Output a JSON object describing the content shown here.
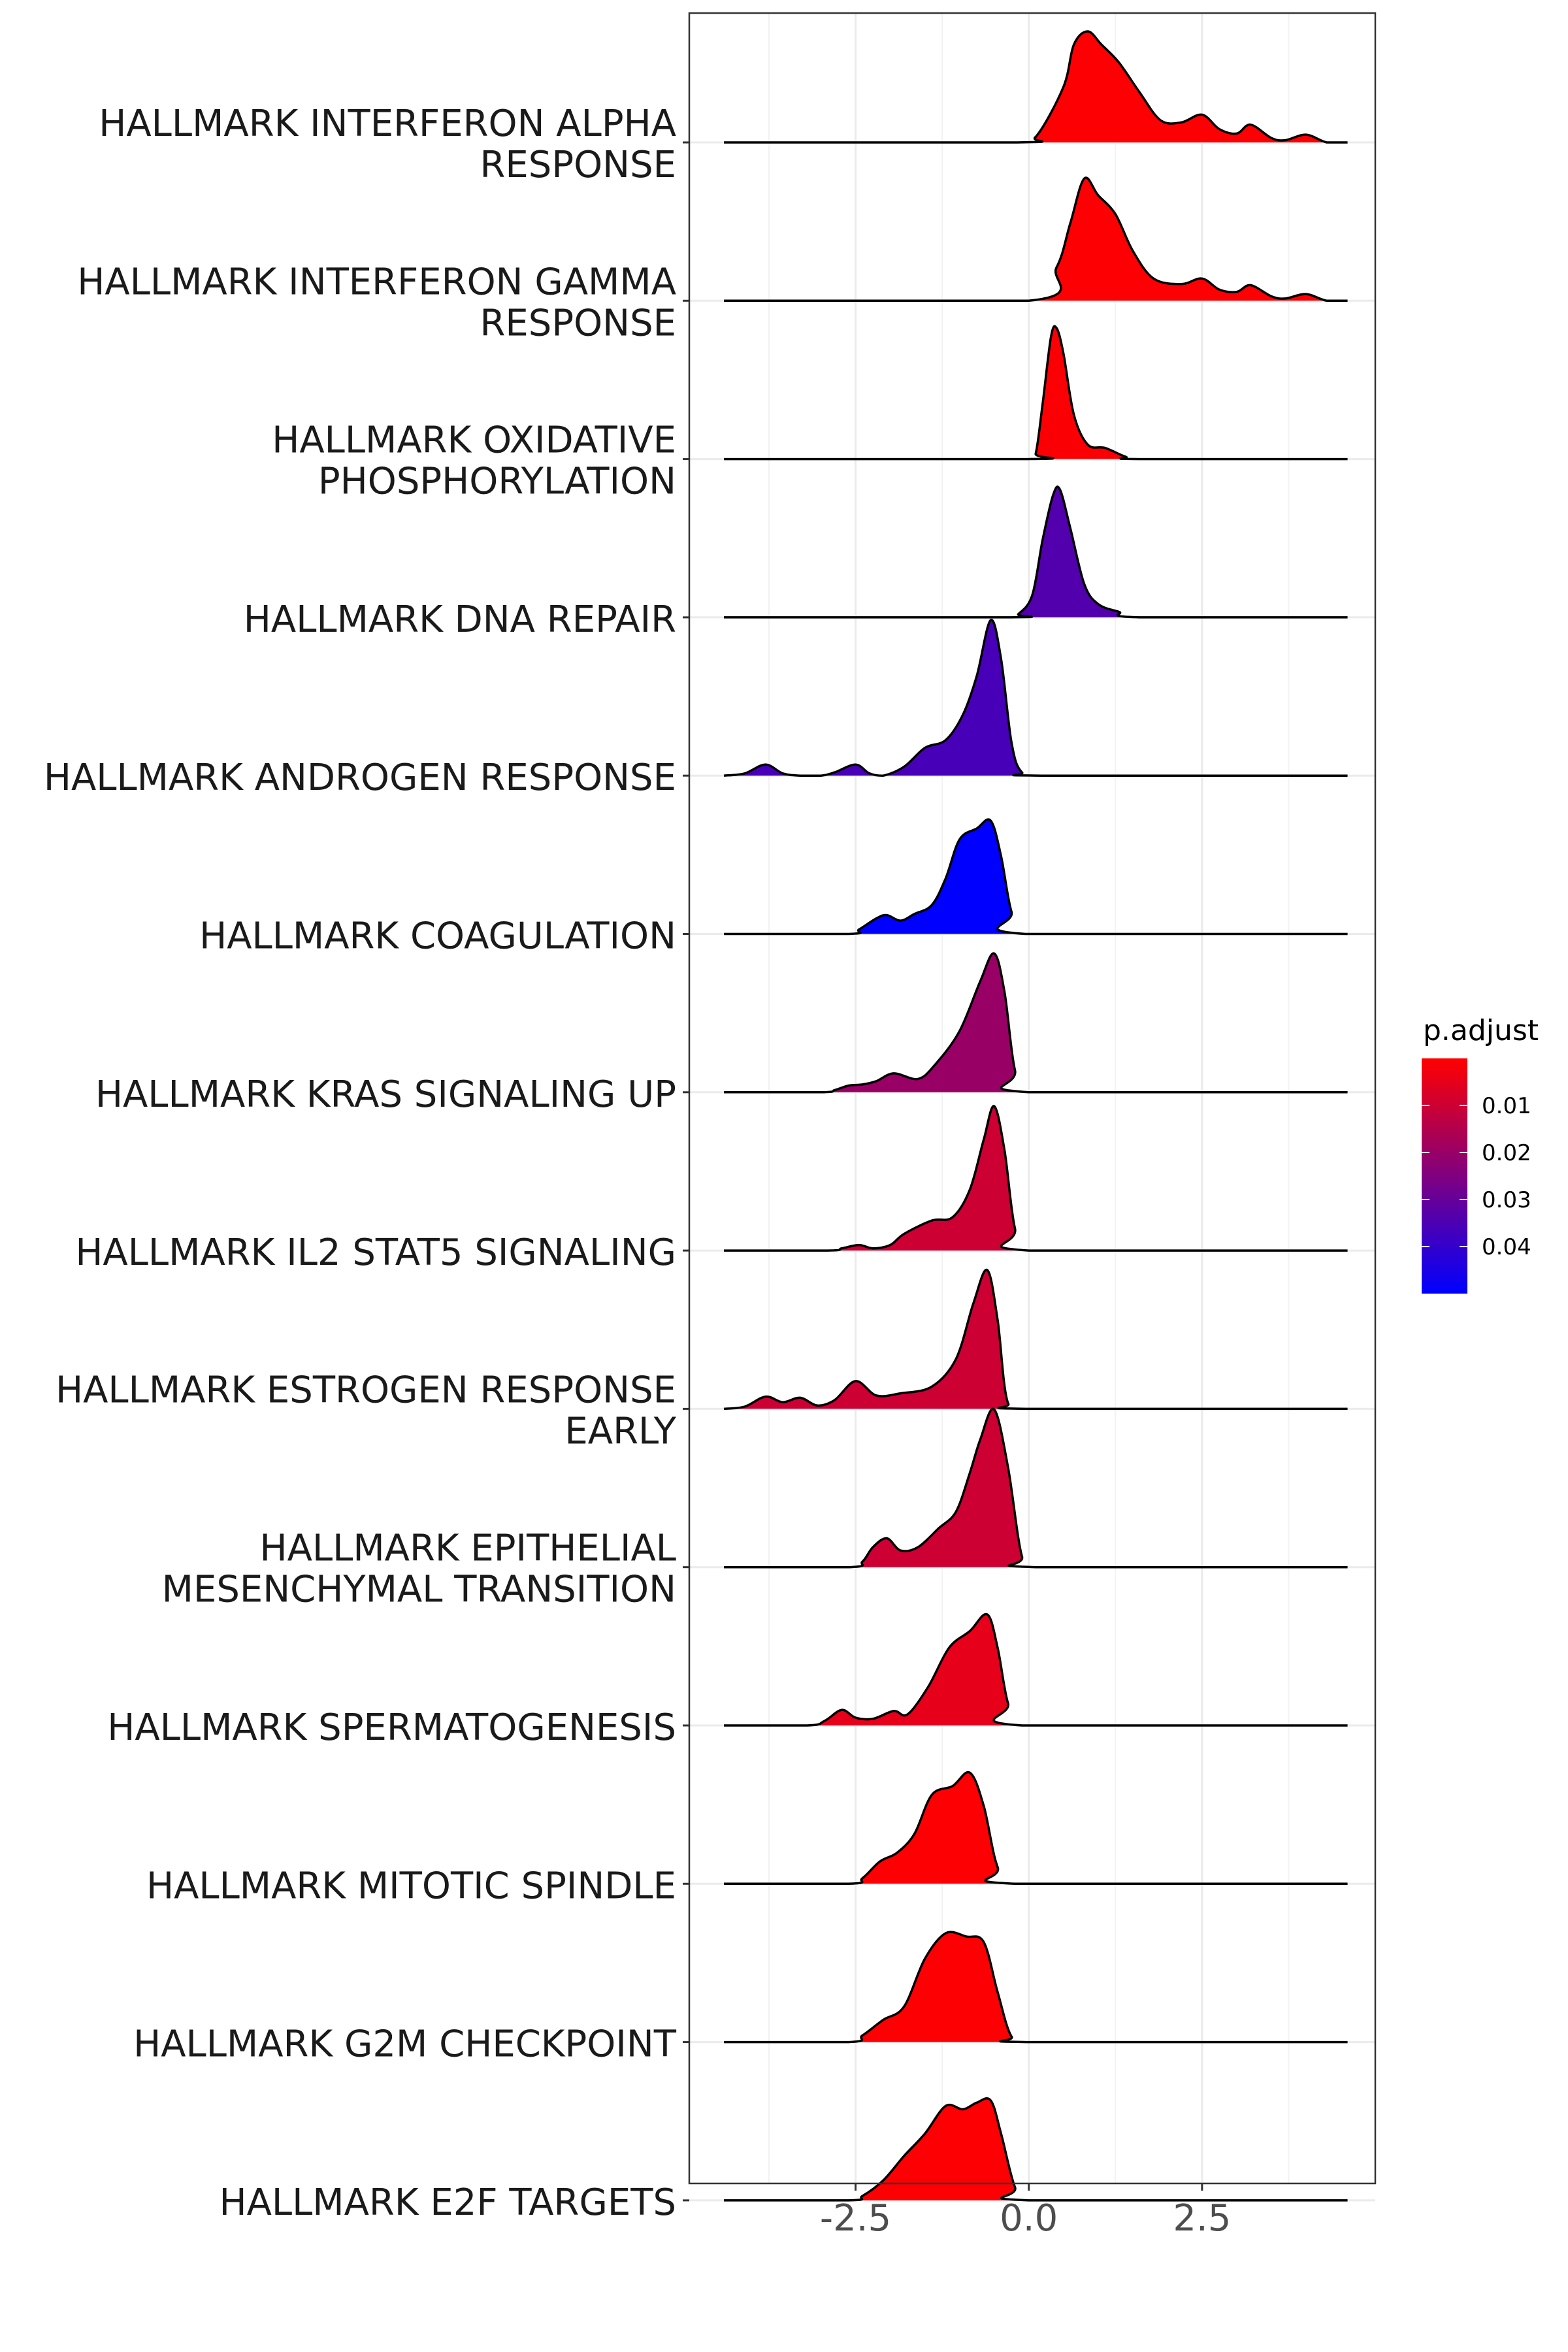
{
  "chart_data": {
    "type": "ridgeline",
    "xlim": [
      -4.9,
      5.0
    ],
    "x_ticks": [
      {
        "value": -2.5,
        "label": "-2.5"
      },
      {
        "value": 0.0,
        "label": "0.0"
      },
      {
        "value": 2.5,
        "label": "2.5"
      }
    ],
    "grid": true,
    "legend": {
      "title": "p.adjust",
      "placement": "right",
      "range": [
        0.0,
        0.05
      ],
      "ticks": [
        {
          "value": 0.01,
          "label": "0.01"
        },
        {
          "value": 0.02,
          "label": "0.02"
        },
        {
          "value": 0.03,
          "label": "0.03"
        },
        {
          "value": 0.04,
          "label": "0.04"
        }
      ],
      "colors": {
        "low_p": "#ff0000",
        "high_p": "#0000ff"
      }
    },
    "series": [
      {
        "label": [
          "HALLMARK INTERFERON ALPHA",
          "RESPONSE"
        ],
        "p_adjust": 0.0005,
        "density": [
          [
            -4.4,
            0
          ],
          [
            -0.2,
            0
          ],
          [
            0.1,
            0.05
          ],
          [
            0.5,
            0.5
          ],
          [
            0.65,
            0.88
          ],
          [
            0.85,
            1.0
          ],
          [
            1.05,
            0.88
          ],
          [
            1.3,
            0.72
          ],
          [
            1.6,
            0.45
          ],
          [
            1.9,
            0.2
          ],
          [
            2.2,
            0.18
          ],
          [
            2.5,
            0.25
          ],
          [
            2.75,
            0.12
          ],
          [
            3.0,
            0.08
          ],
          [
            3.2,
            0.16
          ],
          [
            3.5,
            0.04
          ],
          [
            3.7,
            0.02
          ],
          [
            4.0,
            0.07
          ],
          [
            4.3,
            0.0
          ],
          [
            4.6,
            0
          ]
        ]
      },
      {
        "label": [
          "HALLMARK INTERFERON GAMMA",
          "RESPONSE"
        ],
        "p_adjust": 0.0005,
        "density": [
          [
            -4.4,
            0
          ],
          [
            0.0,
            0
          ],
          [
            0.4,
            0.3
          ],
          [
            0.6,
            0.7
          ],
          [
            0.8,
            1.1
          ],
          [
            1.0,
            0.95
          ],
          [
            1.25,
            0.78
          ],
          [
            1.5,
            0.45
          ],
          [
            1.8,
            0.2
          ],
          [
            2.2,
            0.15
          ],
          [
            2.5,
            0.2
          ],
          [
            2.75,
            0.1
          ],
          [
            3.0,
            0.08
          ],
          [
            3.2,
            0.14
          ],
          [
            3.5,
            0.04
          ],
          [
            3.7,
            0.02
          ],
          [
            4.0,
            0.06
          ],
          [
            4.3,
            0.0
          ],
          [
            4.6,
            0
          ]
        ]
      },
      {
        "label": [
          "HALLMARK OXIDATIVE",
          "PHOSPHORYLATION"
        ],
        "p_adjust": 0.001,
        "density": [
          [
            -4.4,
            0
          ],
          [
            0.0,
            0
          ],
          [
            0.1,
            0.05
          ],
          [
            0.2,
            0.5
          ],
          [
            0.32,
            1.1
          ],
          [
            0.4,
            1.18
          ],
          [
            0.5,
            0.95
          ],
          [
            0.65,
            0.4
          ],
          [
            0.85,
            0.13
          ],
          [
            1.1,
            0.1
          ],
          [
            1.4,
            0.02
          ],
          [
            1.6,
            0
          ],
          [
            4.6,
            0
          ]
        ]
      },
      {
        "label": [
          "HALLMARK DNA REPAIR"
        ],
        "p_adjust": 0.034,
        "density": [
          [
            -4.4,
            0
          ],
          [
            -0.3,
            0
          ],
          [
            -0.15,
            0.03
          ],
          [
            0.05,
            0.2
          ],
          [
            0.2,
            0.7
          ],
          [
            0.35,
            1.1
          ],
          [
            0.45,
            1.15
          ],
          [
            0.6,
            0.8
          ],
          [
            0.8,
            0.3
          ],
          [
            1.0,
            0.12
          ],
          [
            1.3,
            0.05
          ],
          [
            1.6,
            0
          ],
          [
            4.6,
            0
          ]
        ]
      },
      {
        "label": [
          "HALLMARK ANDROGEN RESPONSE"
        ],
        "p_adjust": 0.036,
        "density": [
          [
            -4.4,
            0
          ],
          [
            -4.1,
            0.02
          ],
          [
            -3.8,
            0.1
          ],
          [
            -3.55,
            0.02
          ],
          [
            -3.3,
            0
          ],
          [
            -3.0,
            0
          ],
          [
            -2.8,
            0.03
          ],
          [
            -2.5,
            0.1
          ],
          [
            -2.3,
            0.02
          ],
          [
            -2.1,
            0
          ],
          [
            -1.8,
            0.08
          ],
          [
            -1.5,
            0.25
          ],
          [
            -1.2,
            0.32
          ],
          [
            -0.95,
            0.55
          ],
          [
            -0.75,
            0.9
          ],
          [
            -0.55,
            1.4
          ],
          [
            -0.4,
            1.05
          ],
          [
            -0.25,
            0.3
          ],
          [
            -0.1,
            0.03
          ],
          [
            0.2,
            0
          ],
          [
            4.6,
            0
          ]
        ]
      },
      {
        "label": [
          "HALLMARK COAGULATION"
        ],
        "p_adjust": 0.05,
        "density": [
          [
            -4.4,
            0
          ],
          [
            -2.6,
            0
          ],
          [
            -2.45,
            0.04
          ],
          [
            -2.2,
            0.14
          ],
          [
            -2.05,
            0.17
          ],
          [
            -1.85,
            0.12
          ],
          [
            -1.65,
            0.18
          ],
          [
            -1.4,
            0.26
          ],
          [
            -1.2,
            0.5
          ],
          [
            -1.0,
            0.85
          ],
          [
            -0.75,
            0.95
          ],
          [
            -0.55,
            1.02
          ],
          [
            -0.4,
            0.7
          ],
          [
            -0.25,
            0.2
          ],
          [
            -0.05,
            0
          ],
          [
            4.6,
            0
          ]
        ]
      },
      {
        "label": [
          "HALLMARK KRAS SIGNALING UP"
        ],
        "p_adjust": 0.02,
        "density": [
          [
            -4.4,
            0
          ],
          [
            -3.0,
            0
          ],
          [
            -2.8,
            0.02
          ],
          [
            -2.6,
            0.06
          ],
          [
            -2.4,
            0.07
          ],
          [
            -2.2,
            0.1
          ],
          [
            -1.95,
            0.17
          ],
          [
            -1.6,
            0.12
          ],
          [
            -1.35,
            0.25
          ],
          [
            -1.0,
            0.55
          ],
          [
            -0.7,
            1.0
          ],
          [
            -0.5,
            1.25
          ],
          [
            -0.35,
            0.9
          ],
          [
            -0.2,
            0.2
          ],
          [
            0.0,
            0
          ],
          [
            4.6,
            0
          ]
        ]
      },
      {
        "label": [
          "HALLMARK IL2 STAT5 SIGNALING"
        ],
        "p_adjust": 0.01,
        "density": [
          [
            -4.4,
            0
          ],
          [
            -2.9,
            0
          ],
          [
            -2.7,
            0.02
          ],
          [
            -2.45,
            0.05
          ],
          [
            -2.25,
            0.02
          ],
          [
            -2.0,
            0.05
          ],
          [
            -1.8,
            0.15
          ],
          [
            -1.4,
            0.27
          ],
          [
            -1.1,
            0.3
          ],
          [
            -0.85,
            0.55
          ],
          [
            -0.65,
            1.0
          ],
          [
            -0.5,
            1.3
          ],
          [
            -0.35,
            0.9
          ],
          [
            -0.2,
            0.2
          ],
          [
            0.0,
            0
          ],
          [
            4.6,
            0
          ]
        ]
      },
      {
        "label": [
          "HALLMARK ESTROGEN RESPONSE",
          "EARLY"
        ],
        "p_adjust": 0.01,
        "density": [
          [
            -4.4,
            0
          ],
          [
            -4.1,
            0.02
          ],
          [
            -3.8,
            0.11
          ],
          [
            -3.55,
            0.06
          ],
          [
            -3.3,
            0.1
          ],
          [
            -3.05,
            0.03
          ],
          [
            -2.8,
            0.08
          ],
          [
            -2.5,
            0.25
          ],
          [
            -2.2,
            0.12
          ],
          [
            -1.85,
            0.14
          ],
          [
            -1.4,
            0.2
          ],
          [
            -1.05,
            0.45
          ],
          [
            -0.8,
            0.95
          ],
          [
            -0.6,
            1.25
          ],
          [
            -0.45,
            0.8
          ],
          [
            -0.3,
            0.05
          ],
          [
            0.0,
            0
          ],
          [
            4.6,
            0
          ]
        ]
      },
      {
        "label": [
          "HALLMARK EPITHELIAL",
          "MESENCHYMAL TRANSITION"
        ],
        "p_adjust": 0.01,
        "density": [
          [
            -4.4,
            0
          ],
          [
            -2.6,
            0
          ],
          [
            -2.4,
            0.05
          ],
          [
            -2.25,
            0.18
          ],
          [
            -2.05,
            0.26
          ],
          [
            -1.85,
            0.15
          ],
          [
            -1.6,
            0.18
          ],
          [
            -1.3,
            0.35
          ],
          [
            -1.05,
            0.5
          ],
          [
            -0.85,
            0.85
          ],
          [
            -0.7,
            1.15
          ],
          [
            -0.5,
            1.42
          ],
          [
            -0.3,
            0.9
          ],
          [
            -0.1,
            0.1
          ],
          [
            0.1,
            0
          ],
          [
            4.6,
            0
          ]
        ]
      },
      {
        "label": [
          "HALLMARK SPERMATOGENESIS"
        ],
        "p_adjust": 0.005,
        "density": [
          [
            -4.4,
            0
          ],
          [
            -3.2,
            0
          ],
          [
            -2.95,
            0.04
          ],
          [
            -2.7,
            0.14
          ],
          [
            -2.5,
            0.07
          ],
          [
            -2.25,
            0.06
          ],
          [
            -1.95,
            0.13
          ],
          [
            -1.75,
            0.1
          ],
          [
            -1.45,
            0.35
          ],
          [
            -1.15,
            0.7
          ],
          [
            -0.85,
            0.85
          ],
          [
            -0.6,
            1.0
          ],
          [
            -0.45,
            0.7
          ],
          [
            -0.3,
            0.2
          ],
          [
            -0.1,
            0
          ],
          [
            4.6,
            0
          ]
        ]
      },
      {
        "label": [
          "HALLMARK MITOTIC SPINDLE"
        ],
        "p_adjust": 0.0005,
        "density": [
          [
            -4.4,
            0
          ],
          [
            -2.6,
            0
          ],
          [
            -2.4,
            0.05
          ],
          [
            -2.15,
            0.2
          ],
          [
            -1.9,
            0.28
          ],
          [
            -1.65,
            0.45
          ],
          [
            -1.4,
            0.8
          ],
          [
            -1.1,
            0.88
          ],
          [
            -0.85,
            1.0
          ],
          [
            -0.65,
            0.7
          ],
          [
            -0.45,
            0.15
          ],
          [
            -0.2,
            0
          ],
          [
            4.6,
            0
          ]
        ]
      },
      {
        "label": [
          "HALLMARK G2M CHECKPOINT"
        ],
        "p_adjust": 0.0005,
        "density": [
          [
            -4.4,
            0
          ],
          [
            -2.6,
            0
          ],
          [
            -2.4,
            0.06
          ],
          [
            -2.1,
            0.2
          ],
          [
            -1.8,
            0.32
          ],
          [
            -1.5,
            0.75
          ],
          [
            -1.2,
            0.98
          ],
          [
            -0.9,
            0.95
          ],
          [
            -0.65,
            0.9
          ],
          [
            -0.45,
            0.45
          ],
          [
            -0.25,
            0.05
          ],
          [
            0.0,
            0
          ],
          [
            4.6,
            0
          ]
        ]
      },
      {
        "label": [
          "HALLMARK E2F TARGETS"
        ],
        "p_adjust": 0.0005,
        "density": [
          [
            -4.4,
            0
          ],
          [
            -2.6,
            0
          ],
          [
            -2.4,
            0.04
          ],
          [
            -2.1,
            0.18
          ],
          [
            -1.8,
            0.4
          ],
          [
            -1.5,
            0.6
          ],
          [
            -1.2,
            0.85
          ],
          [
            -0.95,
            0.82
          ],
          [
            -0.75,
            0.88
          ],
          [
            -0.55,
            0.9
          ],
          [
            -0.4,
            0.6
          ],
          [
            -0.2,
            0.12
          ],
          [
            0.0,
            0
          ],
          [
            4.6,
            0
          ]
        ]
      }
    ]
  }
}
